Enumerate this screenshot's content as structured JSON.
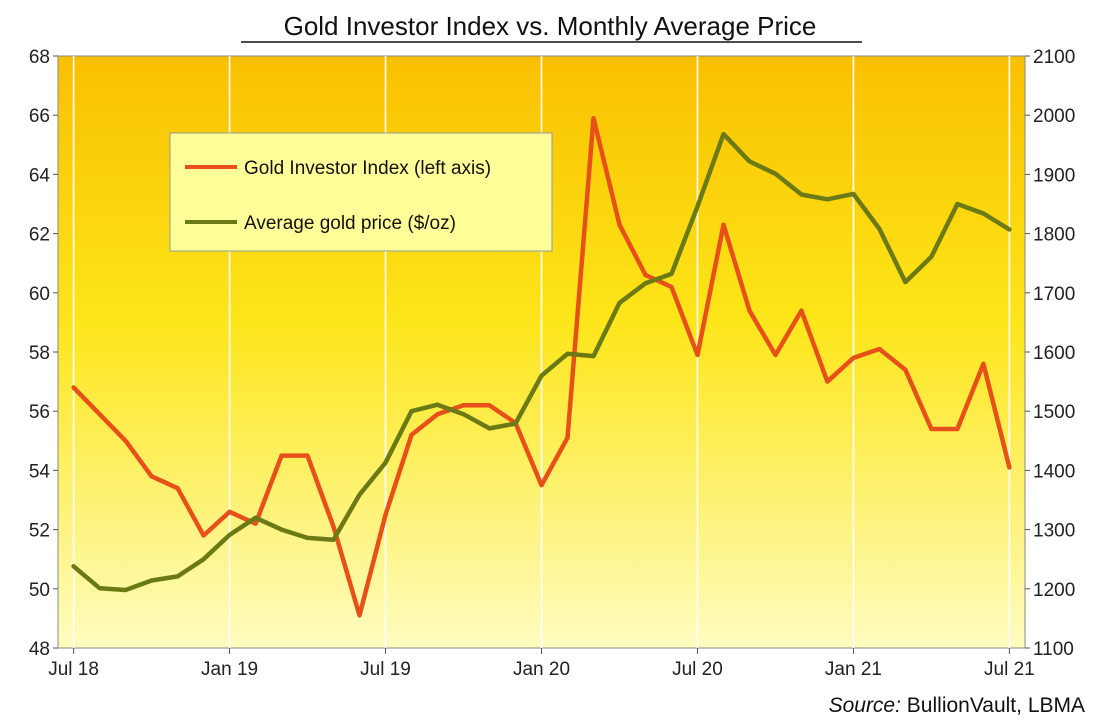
{
  "chart_data": {
    "type": "line",
    "title": "Gold Investor Index vs. Monthly Average Price",
    "source_label": "Source:",
    "source_text": "BullionVault, LBMA",
    "x": [
      "2018-07",
      "2018-08",
      "2018-09",
      "2018-10",
      "2018-11",
      "2018-12",
      "2019-01",
      "2019-02",
      "2019-03",
      "2019-04",
      "2019-05",
      "2019-06",
      "2019-07",
      "2019-08",
      "2019-09",
      "2019-10",
      "2019-11",
      "2019-12",
      "2020-01",
      "2020-02",
      "2020-03",
      "2020-04",
      "2020-05",
      "2020-06",
      "2020-07",
      "2020-08",
      "2020-09",
      "2020-10",
      "2020-11",
      "2020-12",
      "2021-01",
      "2021-02",
      "2021-03",
      "2021-04",
      "2021-05",
      "2021-06",
      "2021-07"
    ],
    "x_tick_labels": [
      {
        "label": "Jul 18",
        "index": 0
      },
      {
        "label": "Jan 19",
        "index": 6
      },
      {
        "label": "Jul 19",
        "index": 12
      },
      {
        "label": "Jan 20",
        "index": 18
      },
      {
        "label": "Jul 20",
        "index": 24
      },
      {
        "label": "Jan 21",
        "index": 30
      },
      {
        "label": "Jul 21",
        "index": 36
      }
    ],
    "x_range": [
      -0.6,
      36.6
    ],
    "y_left": {
      "range": [
        48,
        68
      ],
      "ticks": [
        "48",
        "50",
        "52",
        "54",
        "56",
        "58",
        "60",
        "62",
        "64",
        "66",
        "68"
      ]
    },
    "y_right": {
      "range": [
        1100,
        2100
      ],
      "ticks": [
        "1100",
        "1200",
        "1300",
        "1400",
        "1500",
        "1600",
        "1700",
        "1800",
        "1900",
        "2000",
        "2100"
      ]
    },
    "series": [
      {
        "name": "Gold Investor Index (left axis)",
        "axis": "left",
        "color": "#e8501a",
        "values": [
          56.8,
          55.9,
          55.0,
          53.8,
          53.4,
          51.8,
          52.6,
          52.2,
          54.5,
          54.5,
          52.1,
          49.1,
          52.5,
          55.2,
          55.9,
          56.2,
          56.2,
          55.6,
          53.5,
          55.1,
          65.9,
          62.3,
          60.6,
          60.2,
          57.9,
          62.3,
          59.4,
          57.9,
          59.4,
          57.0,
          57.8,
          58.1,
          57.4,
          55.4,
          55.4,
          57.6,
          54.1
        ]
      },
      {
        "name": "Average gold price ($/oz)",
        "axis": "right",
        "color": "#6b7a14",
        "values": [
          1238,
          1201,
          1198,
          1214,
          1221,
          1250,
          1291,
          1320,
          1300,
          1286,
          1283,
          1359,
          1413,
          1500,
          1511,
          1495,
          1471,
          1479,
          1560,
          1597,
          1593,
          1683,
          1716,
          1732,
          1846,
          1968,
          1922,
          1901,
          1866,
          1858,
          1867,
          1808,
          1718,
          1761,
          1850,
          1834,
          1807
        ]
      }
    ],
    "legend_position": "upper-left inside plot",
    "grid": "vertical lines at x ticks"
  }
}
